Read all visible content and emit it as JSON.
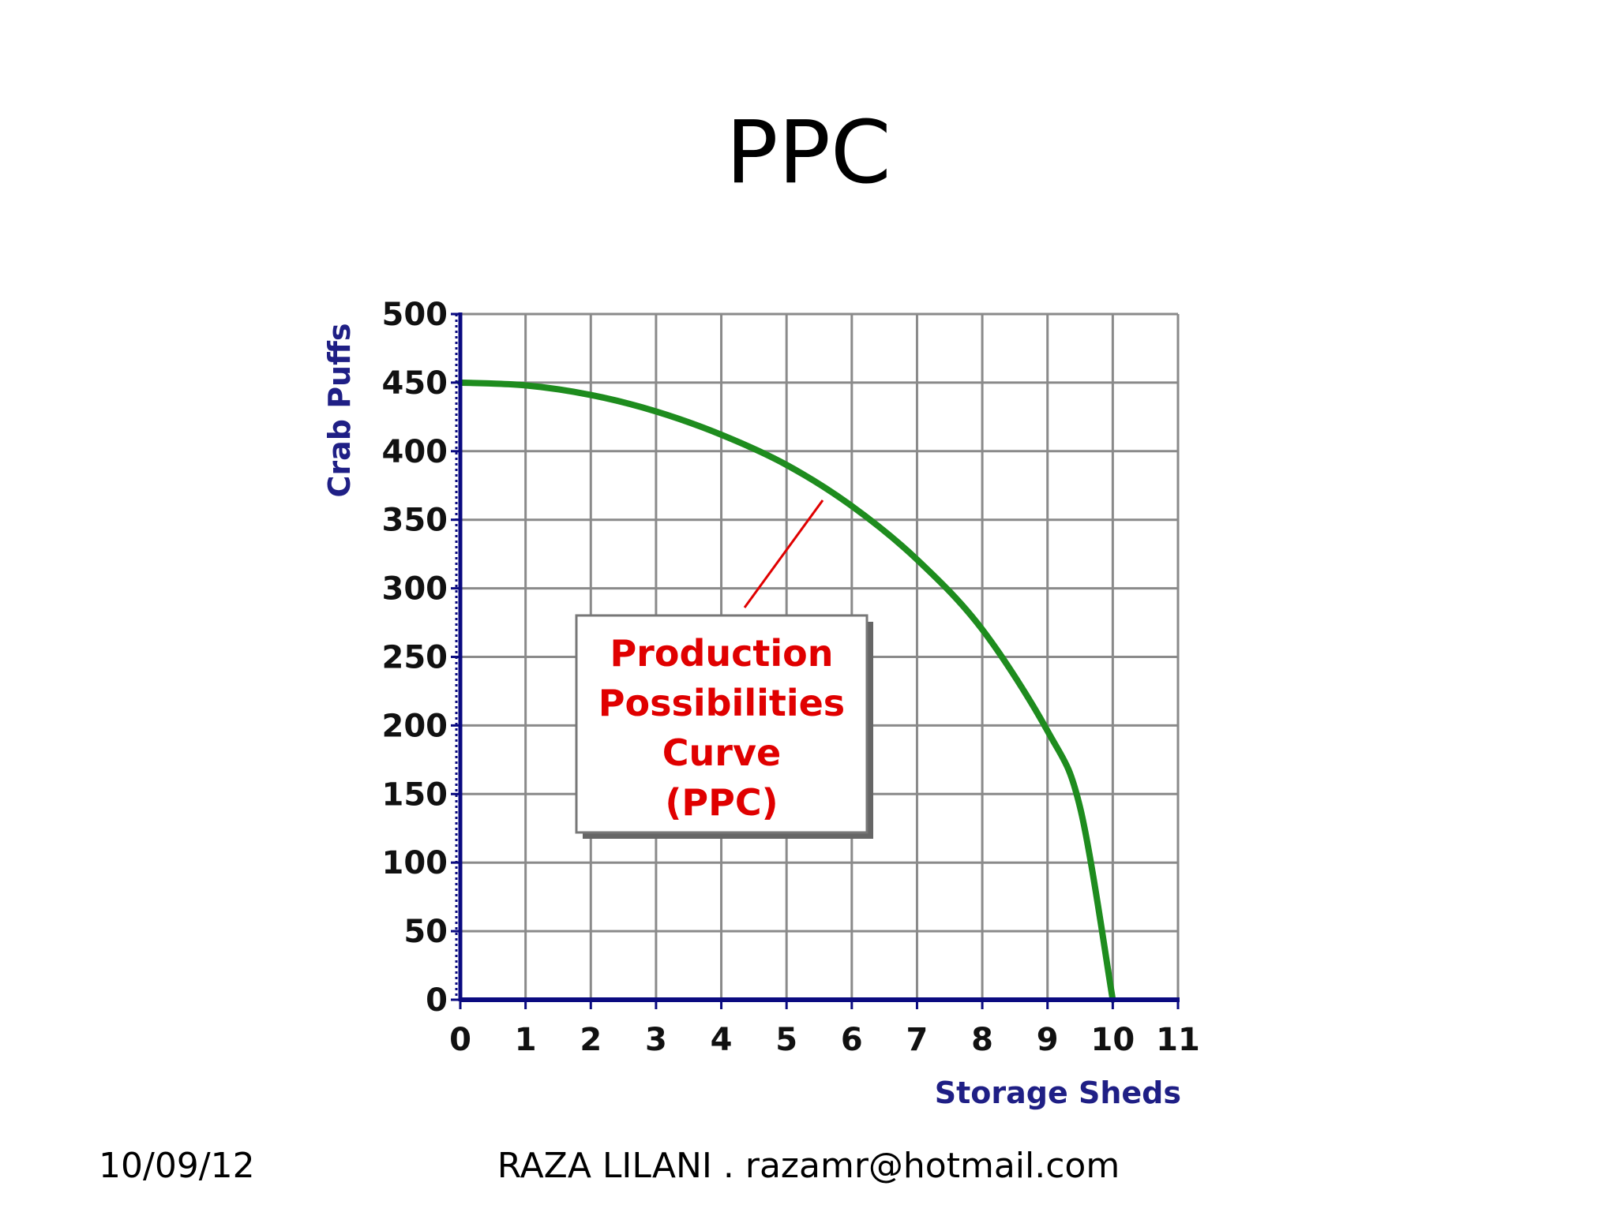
{
  "slide": {
    "title": "PPC",
    "footer_date": "10/09/12",
    "footer_author": "RAZA LILANI . razamr@hotmail.com"
  },
  "chart_data": {
    "type": "line",
    "xlabel": "Storage Sheds",
    "ylabel": "Crab Puffs",
    "xlim": [
      0,
      11
    ],
    "ylim": [
      0,
      500
    ],
    "x_ticks": [
      "0",
      "1",
      "2",
      "3",
      "4",
      "5",
      "6",
      "7",
      "8",
      "9",
      "10",
      "11"
    ],
    "y_ticks": [
      "0",
      "50",
      "100",
      "150",
      "200",
      "250",
      "300",
      "350",
      "400",
      "450",
      "500"
    ],
    "grid": true,
    "series": [
      {
        "color": "#1e8c1e",
        "x": [
          0,
          1,
          2,
          3,
          4,
          5,
          6,
          7,
          8,
          9,
          9.5,
          10
        ],
        "y": [
          450,
          448,
          441,
          429,
          412,
          390,
          360,
          321,
          270,
          196,
          140,
          0
        ]
      }
    ],
    "annotation": {
      "lines": [
        "Production",
        "Possibilities",
        "Curve",
        "(PPC)"
      ],
      "color": "#e00000"
    },
    "colors": {
      "axis": "#0a0a80",
      "grid": "#8a8a8a",
      "axis_title": "#1f1f85"
    }
  }
}
